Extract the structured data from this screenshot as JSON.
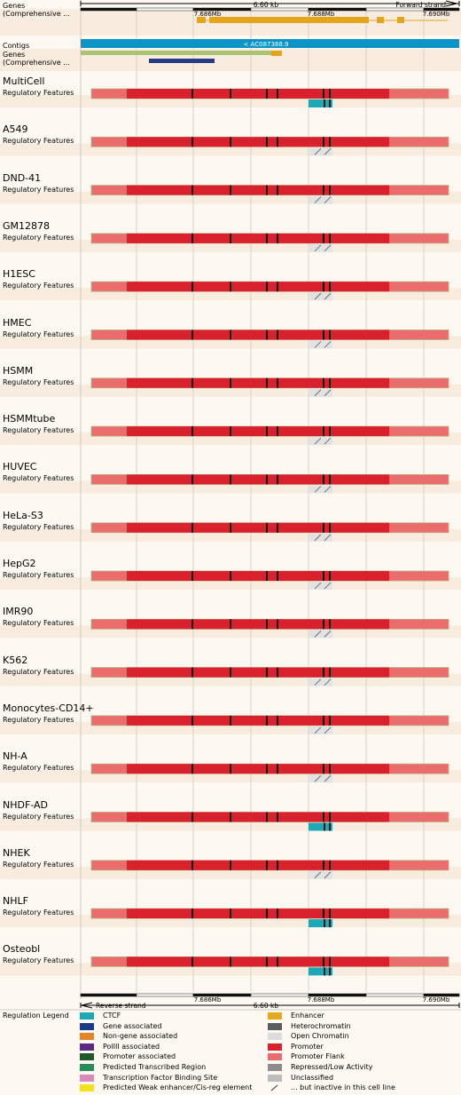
{
  "scale": {
    "top_label": "6.60 kb",
    "top_strand": "Forward strand",
    "bottom_label": "6.60 kb",
    "bottom_strand": "Reverse strand",
    "ticks": [
      "7.686Mb",
      "7.688Mb",
      "7.690Mb"
    ]
  },
  "top_tracks": {
    "genes_top": {
      "line1": "Genes",
      "line2": "(Comprehensive ..."
    },
    "contigs": {
      "label": "Contigs",
      "contig_name": "< AC087388.9"
    },
    "genes_bottom": {
      "line1": "Genes",
      "line2": "(Comprehensive ..."
    }
  },
  "reg_features_label": "Regulatory Features",
  "cell_lines": [
    {
      "name": "MultiCell",
      "ctcf": "active"
    },
    {
      "name": "A549",
      "ctcf": "inactive"
    },
    {
      "name": "DND-41",
      "ctcf": "inactive"
    },
    {
      "name": "GM12878",
      "ctcf": "inactive"
    },
    {
      "name": "H1ESC",
      "ctcf": "inactive"
    },
    {
      "name": "HMEC",
      "ctcf": "inactive"
    },
    {
      "name": "HSMM",
      "ctcf": "inactive"
    },
    {
      "name": "HSMMtube",
      "ctcf": "inactive"
    },
    {
      "name": "HUVEC",
      "ctcf": "inactive"
    },
    {
      "name": "HeLa-S3",
      "ctcf": "inactive"
    },
    {
      "name": "HepG2",
      "ctcf": "inactive"
    },
    {
      "name": "IMR90",
      "ctcf": "inactive"
    },
    {
      "name": "K562",
      "ctcf": "inactive"
    },
    {
      "name": "Monocytes-CD14+",
      "ctcf": "inactive"
    },
    {
      "name": "NH-A",
      "ctcf": "inactive"
    },
    {
      "name": "NHDF-AD",
      "ctcf": "active"
    },
    {
      "name": "NHEK",
      "ctcf": "inactive"
    },
    {
      "name": "NHLF",
      "ctcf": "active"
    },
    {
      "name": "Osteobl",
      "ctcf": "active"
    }
  ],
  "colors": {
    "background": "#fdf9f2",
    "promoter": "#d9212d",
    "promoter_flank": "#ea6c6c",
    "ctcf": "#1ea8b6",
    "gene": "#e4a41c",
    "gene_dark": "#283c86",
    "contig": "#0a94c8",
    "gene_green": "#a9c373"
  },
  "legend": {
    "title": "Regulation Legend",
    "items": [
      {
        "label": "CTCF",
        "color": "#1ea8b6"
      },
      {
        "label": "Enhancer",
        "color": "#e8a81e"
      },
      {
        "label": "Gene associated",
        "color": "#1d3a85"
      },
      {
        "label": "Heterochromatin",
        "color": "#5c5c5c"
      },
      {
        "label": "Non-gene associated",
        "color": "#e6842a"
      },
      {
        "label": "Open Chromatin",
        "color": "#dcdcdc"
      },
      {
        "label": "PolIII associated",
        "color": "#5a2a82"
      },
      {
        "label": "Promoter",
        "color": "#d9212d"
      },
      {
        "label": "Promoter associated",
        "color": "#22592b"
      },
      {
        "label": "Promoter Flank",
        "color": "#ea6c6c"
      },
      {
        "label": "Predicted Transcribed Region",
        "color": "#2c8c57"
      },
      {
        "label": "Repressed/Low Activity",
        "color": "#8c8c8c"
      },
      {
        "label": "Transcription Factor Binding Site",
        "color": "#d88ab8"
      },
      {
        "label": "Unclassified",
        "color": "#bdbdbd"
      },
      {
        "label": "Predicted Weak enhancer/Cis-reg element",
        "color": "#f4e11e"
      },
      {
        "label": "... but inactive in this cell line",
        "color": "inactive"
      }
    ]
  }
}
